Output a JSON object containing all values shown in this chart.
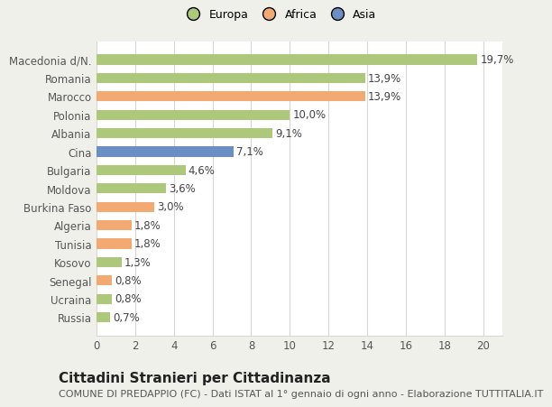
{
  "categories": [
    "Russia",
    "Ucraina",
    "Senegal",
    "Kosovo",
    "Tunisia",
    "Algeria",
    "Burkina Faso",
    "Moldova",
    "Bulgaria",
    "Cina",
    "Albania",
    "Polonia",
    "Marocco",
    "Romania",
    "Macedonia d/N."
  ],
  "values": [
    0.7,
    0.8,
    0.8,
    1.3,
    1.8,
    1.8,
    3.0,
    3.6,
    4.6,
    7.1,
    9.1,
    10.0,
    13.9,
    13.9,
    19.7
  ],
  "colors": [
    "#adc87a",
    "#adc87a",
    "#f2aa72",
    "#adc87a",
    "#f2aa72",
    "#f2aa72",
    "#f2aa72",
    "#adc87a",
    "#adc87a",
    "#6b8fc4",
    "#adc87a",
    "#adc87a",
    "#f2aa72",
    "#adc87a",
    "#adc87a"
  ],
  "labels": [
    "0,7%",
    "0,8%",
    "0,8%",
    "1,3%",
    "1,8%",
    "1,8%",
    "3,0%",
    "3,6%",
    "4,6%",
    "7,1%",
    "9,1%",
    "10,0%",
    "13,9%",
    "13,9%",
    "19,7%"
  ],
  "legend_labels": [
    "Europa",
    "Africa",
    "Asia"
  ],
  "legend_colors": [
    "#adc87a",
    "#f2aa72",
    "#6b8fc4"
  ],
  "title": "Cittadini Stranieri per Cittadinanza",
  "subtitle": "COMUNE DI PREDAPPIO (FC) - Dati ISTAT al 1° gennaio di ogni anno - Elaborazione TUTTITALIA.IT",
  "xlim": [
    0,
    21
  ],
  "xticks": [
    0,
    2,
    4,
    6,
    8,
    10,
    12,
    14,
    16,
    18,
    20
  ],
  "background_color": "#f0f0eb",
  "plot_bg_color": "#ffffff",
  "grid_color": "#d8d8d0",
  "title_fontsize": 11,
  "subtitle_fontsize": 8,
  "tick_fontsize": 8.5,
  "label_fontsize": 8.5,
  "bar_height": 0.55
}
